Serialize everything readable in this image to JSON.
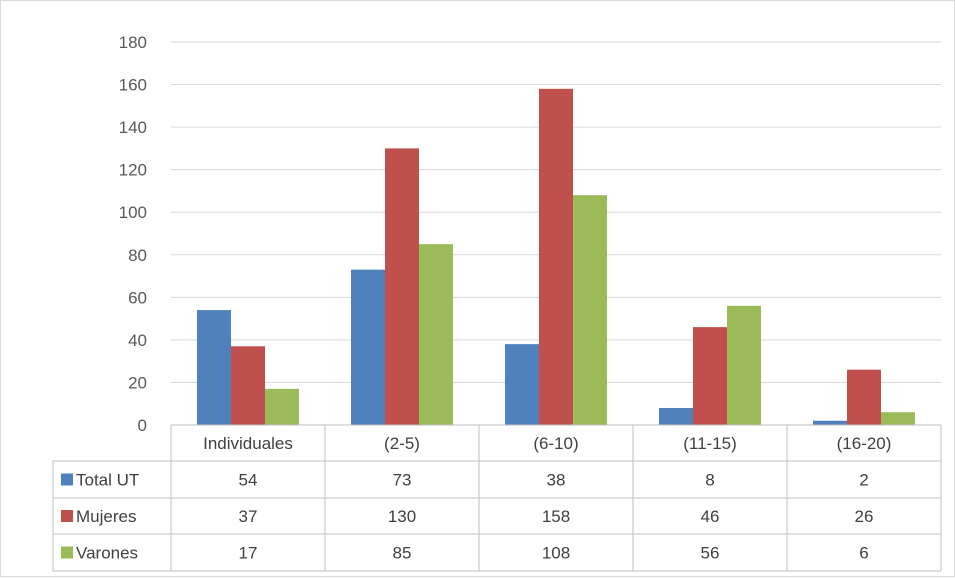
{
  "chart_data": {
    "type": "bar",
    "title": "",
    "xlabel": "",
    "ylabel": "",
    "ylim": [
      0,
      180
    ],
    "yticks": [
      0,
      20,
      40,
      60,
      80,
      100,
      120,
      140,
      160,
      180
    ],
    "grid": true,
    "legend": "data-table-left",
    "categories": [
      "Individuales",
      "(2-5)",
      "(6-10)",
      "(11-15)",
      "(16-20)"
    ],
    "series": [
      {
        "name": "Total UT",
        "color": "#4F81BD",
        "values": [
          54,
          73,
          38,
          8,
          2
        ]
      },
      {
        "name": "Mujeres",
        "color": "#C0504D",
        "values": [
          37,
          130,
          158,
          46,
          26
        ]
      },
      {
        "name": "Varones",
        "color": "#9BBB59",
        "values": [
          17,
          85,
          108,
          56,
          6
        ]
      }
    ],
    "data_table": true
  }
}
